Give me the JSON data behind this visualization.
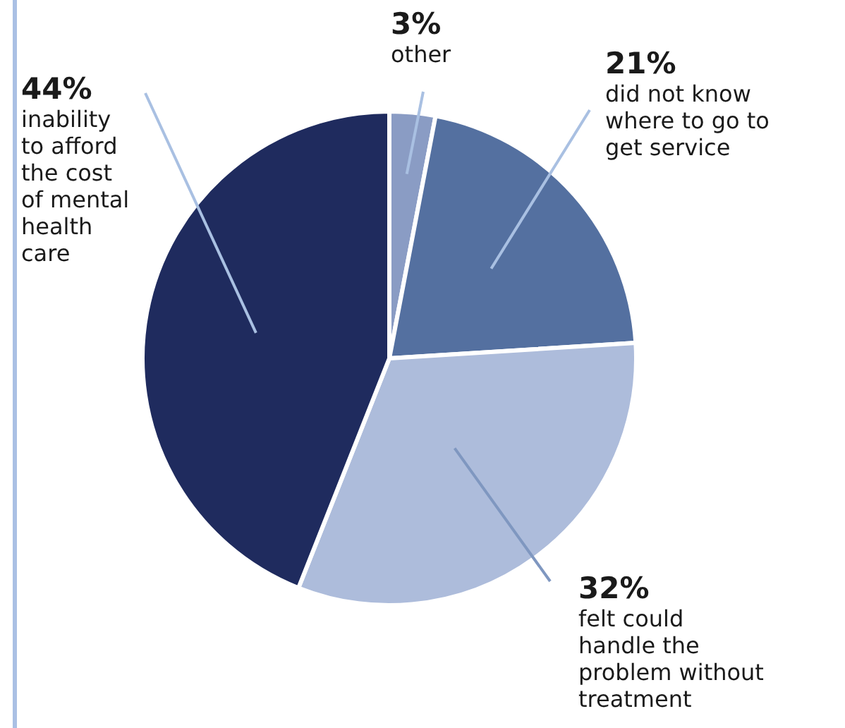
{
  "chart_data": {
    "type": "pie",
    "categories": [
      "other",
      "did not know where to go to get service",
      "felt could handle the problem without treatment",
      "inability to afford the cost of mental health care"
    ],
    "values": [
      3,
      21,
      32,
      44
    ],
    "value_labels": [
      "3%",
      "21%",
      "32%",
      "44%"
    ],
    "colors": [
      "#8a9cc4",
      "#5470a0",
      "#adbcdb",
      "#1f2b5e"
    ]
  }
}
